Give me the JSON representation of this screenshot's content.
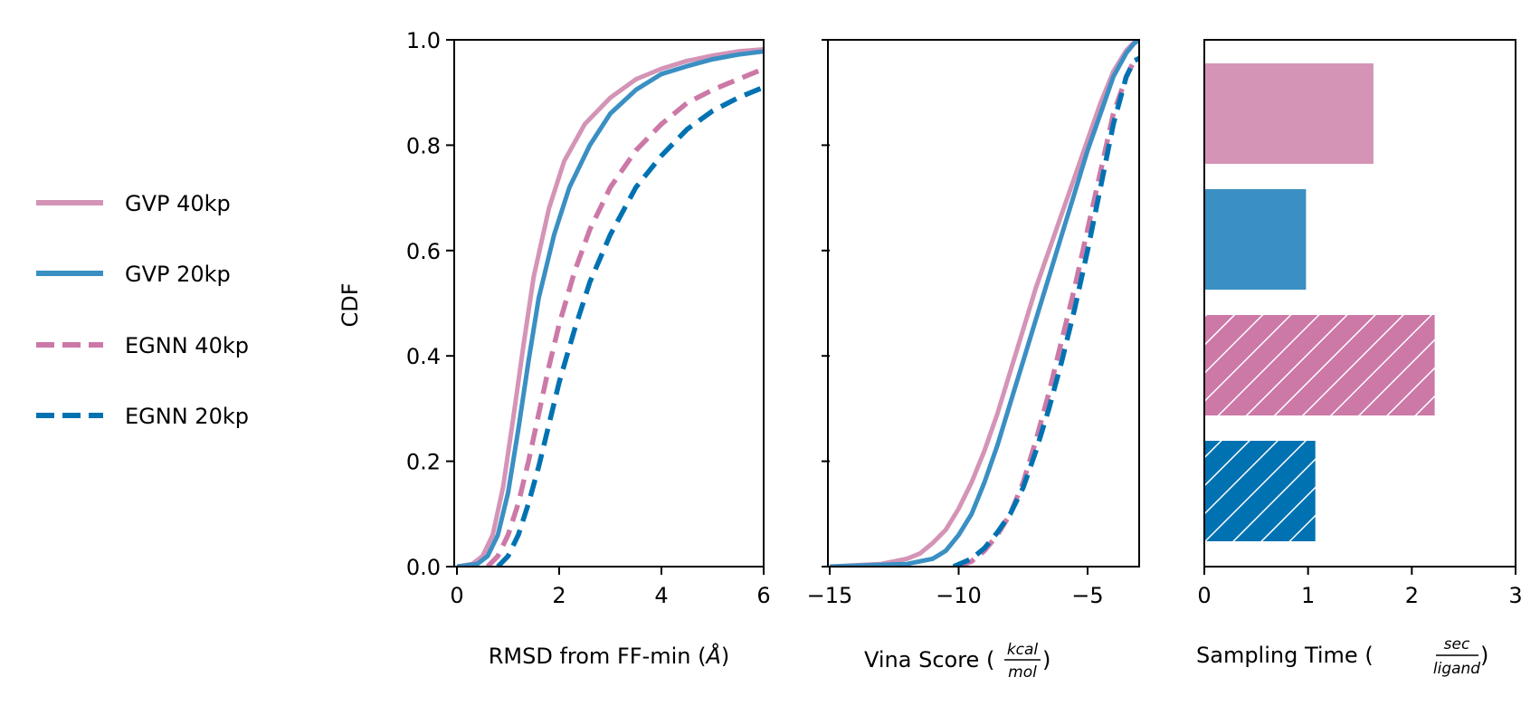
{
  "colors": {
    "gvp40": "#d494b6",
    "gvp20": "#3a8fc3",
    "egnn40": "#cc79a7",
    "egnn20": "#0072b2"
  },
  "legend": [
    {
      "label": "GVP 40kp",
      "color": "#d494b6",
      "dash": false
    },
    {
      "label": "GVP 20kp",
      "color": "#3a8fc3",
      "dash": false
    },
    {
      "label": "EGNN 40kp",
      "color": "#cc79a7",
      "dash": true
    },
    {
      "label": "EGNN 20kp",
      "color": "#0072b2",
      "dash": true
    }
  ],
  "chart_data": [
    {
      "type": "line",
      "ylabel": "CDF",
      "xlabel_prefix": "RMSD from FF-min (",
      "xlabel_unit": "Å",
      "xlabel_suffix": ")",
      "xlim": [
        0,
        6
      ],
      "ylim": [
        0,
        1
      ],
      "xticks": [
        0,
        2,
        4,
        6
      ],
      "xtick_labels": [
        "0",
        "2",
        "4",
        "6"
      ],
      "yticks": [
        0,
        0.2,
        0.4,
        0.6,
        0.8,
        1.0
      ],
      "ytick_labels": [
        "0.0",
        "0.2",
        "0.4",
        "0.6",
        "0.8",
        "1.0"
      ],
      "series": [
        {
          "name": "GVP 40kp",
          "dash": false,
          "x": [
            0,
            0.3,
            0.5,
            0.7,
            0.9,
            1.1,
            1.3,
            1.5,
            1.8,
            2.1,
            2.5,
            3.0,
            3.5,
            4.0,
            4.5,
            5.0,
            5.5,
            6.0
          ],
          "y": [
            0,
            0.005,
            0.02,
            0.06,
            0.15,
            0.28,
            0.42,
            0.55,
            0.68,
            0.77,
            0.84,
            0.89,
            0.925,
            0.945,
            0.96,
            0.97,
            0.978,
            0.982
          ]
        },
        {
          "name": "GVP 20kp",
          "dash": false,
          "x": [
            0,
            0.4,
            0.6,
            0.8,
            1.0,
            1.2,
            1.4,
            1.6,
            1.9,
            2.2,
            2.6,
            3.0,
            3.5,
            4.0,
            4.5,
            5.0,
            5.5,
            6.0
          ],
          "y": [
            0,
            0.005,
            0.02,
            0.06,
            0.14,
            0.26,
            0.39,
            0.51,
            0.63,
            0.72,
            0.8,
            0.86,
            0.905,
            0.935,
            0.95,
            0.963,
            0.972,
            0.978
          ]
        },
        {
          "name": "EGNN 40kp",
          "dash": false,
          "x": [
            0.6,
            0.8,
            1.0,
            1.2,
            1.4,
            1.6,
            1.8,
            2.0,
            2.3,
            2.6,
            3.0,
            3.5,
            4.0,
            4.5,
            5.0,
            5.5,
            6.0
          ],
          "y": [
            0,
            0.02,
            0.06,
            0.12,
            0.2,
            0.29,
            0.38,
            0.46,
            0.56,
            0.64,
            0.72,
            0.79,
            0.84,
            0.88,
            0.905,
            0.925,
            0.945
          ]
        },
        {
          "name": "EGNN 20kp",
          "dash": false,
          "x": [
            0.8,
            1.0,
            1.2,
            1.4,
            1.6,
            1.8,
            2.0,
            2.3,
            2.6,
            3.0,
            3.5,
            4.0,
            4.5,
            5.0,
            5.5,
            6.0
          ],
          "y": [
            0,
            0.02,
            0.06,
            0.12,
            0.19,
            0.27,
            0.35,
            0.45,
            0.54,
            0.63,
            0.72,
            0.78,
            0.83,
            0.865,
            0.89,
            0.91
          ]
        }
      ]
    },
    {
      "type": "line",
      "xlabel_prefix": "Vina Score (",
      "xlabel_frac_num": "kcal",
      "xlabel_frac_den": "mol",
      "xlabel_suffix": ")",
      "xlim": [
        -15,
        -3
      ],
      "ylim": [
        0,
        1
      ],
      "xticks": [
        -15,
        -10,
        -5
      ],
      "xtick_labels": [
        "−15",
        "−10",
        "−5"
      ],
      "yticks": [
        0,
        0.2,
        0.4,
        0.6,
        0.8,
        1.0
      ],
      "series": [
        {
          "name": "GVP 40kp",
          "x": [
            -15,
            -13,
            -12,
            -11.5,
            -11,
            -10.5,
            -10,
            -9.5,
            -9,
            -8.5,
            -8,
            -7.5,
            -7,
            -6.5,
            -6,
            -5.5,
            -5,
            -4.5,
            -4,
            -3.5,
            -3.2,
            -3
          ],
          "y": [
            0,
            0.005,
            0.015,
            0.025,
            0.045,
            0.07,
            0.11,
            0.16,
            0.22,
            0.29,
            0.37,
            0.45,
            0.53,
            0.6,
            0.67,
            0.74,
            0.81,
            0.88,
            0.94,
            0.98,
            0.995,
            1.0
          ]
        },
        {
          "name": "GVP 20kp",
          "x": [
            -15,
            -12,
            -11,
            -10.5,
            -10,
            -9.5,
            -9,
            -8.5,
            -8,
            -7.5,
            -7,
            -6.5,
            -6,
            -5.5,
            -5,
            -4.5,
            -4,
            -3.5,
            -3.2,
            -3
          ],
          "y": [
            0,
            0.005,
            0.015,
            0.03,
            0.06,
            0.1,
            0.16,
            0.23,
            0.31,
            0.39,
            0.47,
            0.55,
            0.63,
            0.71,
            0.79,
            0.86,
            0.93,
            0.975,
            0.993,
            1.0
          ]
        },
        {
          "name": "EGNN 40kp",
          "x": [
            -10,
            -9.5,
            -9,
            -8.5,
            -8,
            -7.5,
            -7,
            -6.5,
            -6,
            -5.5,
            -5,
            -4.5,
            -4,
            -3.5,
            -3.2,
            -3
          ],
          "y": [
            0,
            0.01,
            0.03,
            0.06,
            0.1,
            0.16,
            0.24,
            0.33,
            0.43,
            0.53,
            0.64,
            0.75,
            0.86,
            0.93,
            0.96,
            0.965
          ]
        },
        {
          "name": "EGNN 20kp",
          "x": [
            -10.2,
            -9.5,
            -9,
            -8.5,
            -8,
            -7.5,
            -7,
            -6.5,
            -6,
            -5.5,
            -5,
            -4.5,
            -4,
            -3.5,
            -3.2,
            -3
          ],
          "y": [
            0,
            0.015,
            0.035,
            0.065,
            0.1,
            0.15,
            0.22,
            0.3,
            0.39,
            0.49,
            0.6,
            0.72,
            0.84,
            0.93,
            0.96,
            0.965
          ]
        }
      ]
    },
    {
      "type": "bar",
      "orientation": "horizontal",
      "xlabel_prefix": "Sampling Time (",
      "xlabel_frac_num": "sec",
      "xlabel_frac_den": "ligand",
      "xlabel_suffix": ")",
      "xlim": [
        0,
        3
      ],
      "xticks": [
        0,
        1,
        2,
        3
      ],
      "xtick_labels": [
        "0",
        "1",
        "2",
        "3"
      ],
      "categories": [
        "GVP 40kp",
        "GVP 20kp",
        "EGNN 40kp",
        "EGNN 20kp"
      ],
      "values": [
        1.63,
        0.98,
        2.22,
        1.07
      ],
      "hatched": [
        false,
        false,
        true,
        true
      ]
    }
  ]
}
